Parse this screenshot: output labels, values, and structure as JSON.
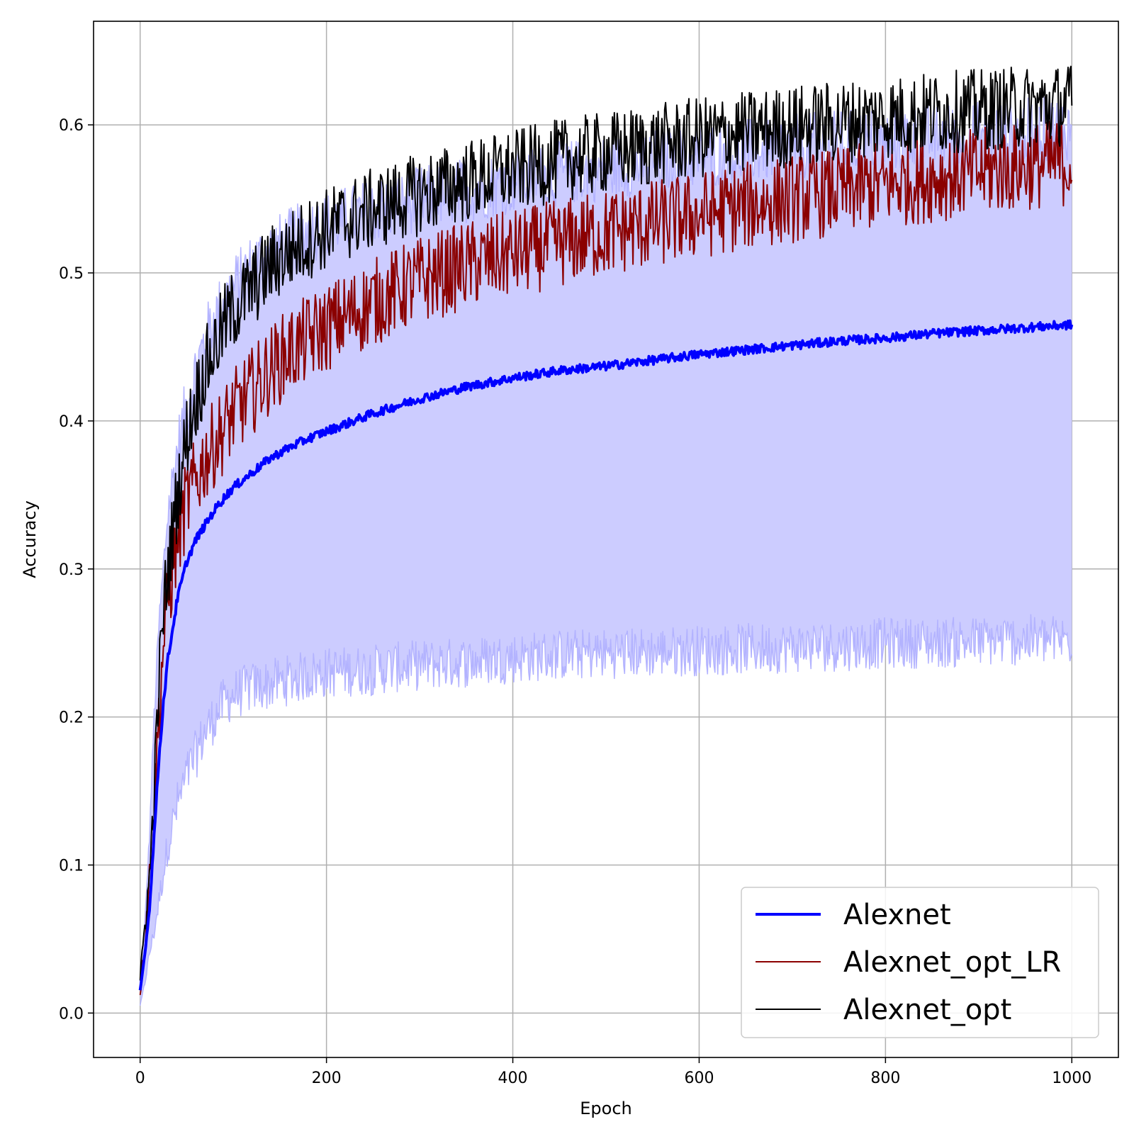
{
  "chart_data": {
    "type": "line",
    "title": "",
    "xlabel": "Epoch",
    "ylabel": "Accuracy",
    "xlim": [
      -50,
      1050
    ],
    "ylim": [
      -0.03,
      0.67
    ],
    "xticks": [
      0,
      200,
      400,
      600,
      800,
      1000
    ],
    "xtick_labels": [
      "0",
      "200",
      "400",
      "600",
      "800",
      "1000"
    ],
    "yticks": [
      0.0,
      0.1,
      0.2,
      0.3,
      0.4,
      0.5,
      0.6
    ],
    "ytick_labels": [
      "0.0",
      "0.1",
      "0.2",
      "0.3",
      "0.4",
      "0.5",
      "0.6"
    ],
    "grid": true,
    "legend_position": "bottom-right",
    "band": {
      "color": "#ccccff",
      "edge_color": "#b3b3ff",
      "x": [
        0,
        5,
        10,
        15,
        20,
        25,
        30,
        40,
        50,
        60,
        70,
        80,
        90,
        100,
        120,
        140,
        160,
        180,
        200,
        250,
        300,
        350,
        400,
        450,
        500,
        550,
        600,
        650,
        700,
        750,
        800,
        850,
        900,
        950,
        1000
      ],
      "lower": [
        0.005,
        0.02,
        0.04,
        0.055,
        0.075,
        0.095,
        0.115,
        0.14,
        0.16,
        0.175,
        0.19,
        0.2,
        0.21,
        0.215,
        0.22,
        0.222,
        0.225,
        0.228,
        0.23,
        0.232,
        0.235,
        0.237,
        0.24,
        0.242,
        0.243,
        0.244,
        0.245,
        0.246,
        0.247,
        0.248,
        0.25,
        0.25,
        0.251,
        0.252,
        0.252
      ],
      "upper": [
        0.02,
        0.06,
        0.12,
        0.2,
        0.26,
        0.3,
        0.34,
        0.38,
        0.41,
        0.435,
        0.455,
        0.47,
        0.48,
        0.49,
        0.505,
        0.515,
        0.522,
        0.528,
        0.533,
        0.542,
        0.55,
        0.556,
        0.562,
        0.567,
        0.571,
        0.575,
        0.579,
        0.582,
        0.585,
        0.588,
        0.59,
        0.592,
        0.594,
        0.596,
        0.598
      ]
    },
    "series": [
      {
        "name": "Alexnet",
        "color": "#0000ff",
        "x": [
          0,
          5,
          10,
          15,
          20,
          25,
          30,
          40,
          50,
          60,
          70,
          80,
          90,
          100,
          120,
          140,
          160,
          180,
          200,
          250,
          300,
          350,
          400,
          450,
          500,
          550,
          600,
          650,
          700,
          750,
          800,
          850,
          900,
          950,
          1000
        ],
        "y": [
          0.015,
          0.04,
          0.07,
          0.12,
          0.17,
          0.21,
          0.24,
          0.28,
          0.305,
          0.32,
          0.33,
          0.34,
          0.348,
          0.355,
          0.365,
          0.375,
          0.382,
          0.388,
          0.393,
          0.405,
          0.415,
          0.423,
          0.429,
          0.434,
          0.437,
          0.441,
          0.445,
          0.448,
          0.451,
          0.454,
          0.456,
          0.459,
          0.461,
          0.463,
          0.465
        ]
      },
      {
        "name": "Alexnet_opt_LR",
        "color": "#8b0000",
        "x": [
          0,
          5,
          10,
          15,
          20,
          25,
          30,
          40,
          50,
          60,
          70,
          80,
          90,
          100,
          120,
          140,
          160,
          180,
          200,
          250,
          300,
          350,
          400,
          450,
          500,
          550,
          600,
          650,
          700,
          750,
          800,
          850,
          900,
          950,
          1000
        ],
        "y": [
          0.015,
          0.05,
          0.09,
          0.14,
          0.2,
          0.25,
          0.28,
          0.32,
          0.345,
          0.36,
          0.375,
          0.385,
          0.395,
          0.405,
          0.42,
          0.435,
          0.447,
          0.455,
          0.463,
          0.48,
          0.495,
          0.505,
          0.513,
          0.52,
          0.527,
          0.533,
          0.539,
          0.545,
          0.55,
          0.555,
          0.56,
          0.564,
          0.568,
          0.572,
          0.575
        ]
      },
      {
        "name": "Alexnet_opt",
        "color": "#000000",
        "x": [
          0,
          5,
          10,
          15,
          20,
          25,
          30,
          40,
          50,
          60,
          70,
          80,
          90,
          100,
          120,
          140,
          160,
          180,
          200,
          250,
          300,
          350,
          400,
          450,
          500,
          550,
          600,
          650,
          700,
          750,
          800,
          850,
          900,
          950,
          1000
        ],
        "y": [
          0.02,
          0.06,
          0.09,
          0.15,
          0.22,
          0.27,
          0.3,
          0.35,
          0.39,
          0.415,
          0.435,
          0.45,
          0.465,
          0.475,
          0.49,
          0.505,
          0.515,
          0.523,
          0.53,
          0.543,
          0.553,
          0.562,
          0.569,
          0.576,
          0.581,
          0.586,
          0.591,
          0.595,
          0.599,
          0.602,
          0.605,
          0.608,
          0.61,
          0.612,
          0.614
        ]
      }
    ]
  }
}
